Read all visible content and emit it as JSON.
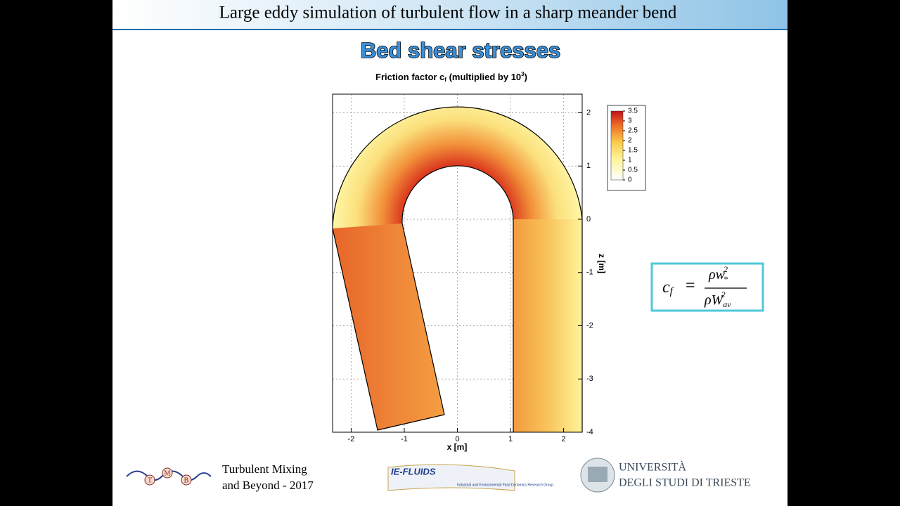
{
  "header": {
    "title": "Large eddy simulation of turbulent flow in a sharp meander bend"
  },
  "slide_title": "Bed shear stresses",
  "plot": {
    "title_a": "Friction factor c",
    "title_b": "f",
    "title_c": " (multiplied by 10",
    "title_d": "3",
    "title_e": ")",
    "xlabel": "x [m]",
    "ylabel": "z [m]",
    "xlim": [
      -2.35,
      2.35
    ],
    "xticks": [
      -2,
      -1,
      0,
      1,
      2
    ],
    "zlim": [
      -4,
      2.35
    ],
    "zticks": [
      -4,
      -3,
      -2,
      -1,
      0,
      1,
      2
    ],
    "colorbar": {
      "lim": [
        0,
        3.5
      ],
      "ticks": [
        0,
        0.5,
        1,
        1.5,
        2,
        2.5,
        3,
        3.5
      ]
    }
  },
  "formula": {
    "lhs": "c",
    "lhs_sub": "f",
    "eq": "=",
    "num": "ρw",
    "num_sub": "*",
    "num_sup": "2",
    "den": "ρW",
    "den_sub": "av",
    "den_sup": "2"
  },
  "footer": {
    "tmb_letters": [
      "T",
      "M",
      "B"
    ],
    "tmb_line1": "Turbulent Mixing",
    "tmb_line2": "and Beyond - 2017",
    "ie_name": "IE-FLUIDS",
    "ie_sub": "Industrial and Environmental Fluid Dynamics Research Group",
    "uni_line1": "UNIVERSITÀ",
    "uni_line2": "DEGLI STUDI DI TRIESTE"
  }
}
